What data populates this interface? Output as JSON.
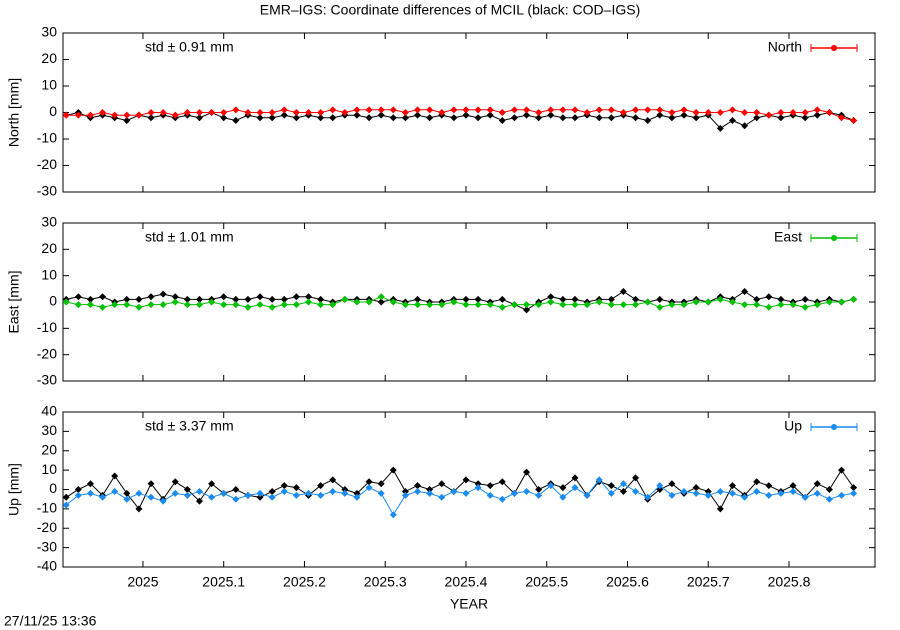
{
  "title": "EMR–IGS: Coordinate differences of MCIL (black: COD–IGS)",
  "timestamp": "27/11/25 13:36",
  "chart_data": [
    {
      "type": "line",
      "ylabel": "North [mm]",
      "annotation": "std ± 0.91 mm",
      "xlim": [
        2024.901,
        2025.9065
      ],
      "xticks": [
        2025,
        2025.1,
        2025.2,
        2025.3,
        2025.4,
        2025.5,
        2025.6,
        2025.7,
        2025.8
      ],
      "ylim": [
        -30,
        30
      ],
      "yticks": [
        -30,
        -20,
        -10,
        0,
        10,
        20,
        30
      ],
      "legend": "top-right",
      "x": [
        2024.905,
        2024.92,
        2024.935,
        2024.95,
        2024.965,
        2024.98,
        2024.995,
        2025.01,
        2025.025,
        2025.04,
        2025.055,
        2025.07,
        2025.085,
        2025.1,
        2025.115,
        2025.13,
        2025.145,
        2025.16,
        2025.175,
        2025.19,
        2025.205,
        2025.22,
        2025.235,
        2025.25,
        2025.265,
        2025.28,
        2025.295,
        2025.31,
        2025.325,
        2025.34,
        2025.355,
        2025.37,
        2025.385,
        2025.4,
        2025.415,
        2025.43,
        2025.445,
        2025.46,
        2025.475,
        2025.49,
        2025.505,
        2025.52,
        2025.535,
        2025.55,
        2025.565,
        2025.58,
        2025.595,
        2025.61,
        2025.625,
        2025.64,
        2025.655,
        2025.67,
        2025.685,
        2025.7,
        2025.715,
        2025.73,
        2025.745,
        2025.76,
        2025.775,
        2025.79,
        2025.805,
        2025.82,
        2025.835,
        2025.85,
        2025.865,
        2025.88
      ],
      "series": [
        {
          "color": "#000000",
          "values": [
            -1,
            0,
            -2,
            -1,
            -2,
            -3,
            -1,
            -2,
            -1,
            -2,
            -1,
            -2,
            0,
            -2,
            -3,
            -1,
            -2,
            -2,
            -1,
            -2,
            -1,
            -2,
            -2,
            -1,
            -1,
            -2,
            -1,
            -2,
            -2,
            -1,
            -2,
            -1,
            -2,
            -1,
            -2,
            -1,
            -3,
            -2,
            -1,
            -2,
            -1,
            -2,
            -2,
            -1,
            -2,
            -2,
            -1,
            -2,
            -3,
            -1,
            -2,
            -1,
            -2,
            -1,
            -6,
            -3,
            -5,
            -2,
            -1,
            -2,
            -1,
            -2,
            -1,
            0,
            -1,
            -3
          ]
        },
        {
          "name": "North",
          "color": "#ff0000",
          "values": [
            -1,
            -1,
            -1,
            0,
            -1,
            -1,
            -1,
            0,
            0,
            -1,
            0,
            0,
            0,
            0,
            1,
            0,
            0,
            0,
            1,
            0,
            0,
            0,
            1,
            0,
            1,
            1,
            1,
            1,
            0,
            1,
            1,
            0,
            1,
            1,
            1,
            1,
            0,
            1,
            1,
            0,
            1,
            1,
            1,
            0,
            1,
            1,
            0,
            1,
            1,
            1,
            0,
            1,
            0,
            0,
            0,
            1,
            0,
            0,
            -1,
            0,
            0,
            0,
            1,
            0,
            -2,
            -3
          ]
        }
      ]
    },
    {
      "type": "line",
      "ylabel": "East [mm]",
      "annotation": "std ± 1.01 mm",
      "xlim": [
        2024.901,
        2025.9065
      ],
      "xticks": [
        2025,
        2025.1,
        2025.2,
        2025.3,
        2025.4,
        2025.5,
        2025.6,
        2025.7,
        2025.8
      ],
      "ylim": [
        -30,
        30
      ],
      "yticks": [
        -30,
        -20,
        -10,
        0,
        10,
        20,
        30
      ],
      "legend": "top-right",
      "x": [
        2024.905,
        2024.92,
        2024.935,
        2024.95,
        2024.965,
        2024.98,
        2024.995,
        2025.01,
        2025.025,
        2025.04,
        2025.055,
        2025.07,
        2025.085,
        2025.1,
        2025.115,
        2025.13,
        2025.145,
        2025.16,
        2025.175,
        2025.19,
        2025.205,
        2025.22,
        2025.235,
        2025.25,
        2025.265,
        2025.28,
        2025.295,
        2025.31,
        2025.325,
        2025.34,
        2025.355,
        2025.37,
        2025.385,
        2025.4,
        2025.415,
        2025.43,
        2025.445,
        2025.46,
        2025.475,
        2025.49,
        2025.505,
        2025.52,
        2025.535,
        2025.55,
        2025.565,
        2025.58,
        2025.595,
        2025.61,
        2025.625,
        2025.64,
        2025.655,
        2025.67,
        2025.685,
        2025.7,
        2025.715,
        2025.73,
        2025.745,
        2025.76,
        2025.775,
        2025.79,
        2025.805,
        2025.82,
        2025.835,
        2025.85,
        2025.865,
        2025.88
      ],
      "series": [
        {
          "color": "#000000",
          "values": [
            1,
            2,
            1,
            2,
            0,
            1,
            1,
            2,
            3,
            2,
            1,
            1,
            1,
            2,
            1,
            1,
            2,
            1,
            1,
            2,
            2,
            1,
            0,
            1,
            1,
            1,
            0,
            1,
            0,
            1,
            0,
            0,
            1,
            1,
            1,
            0,
            1,
            -1,
            -3,
            0,
            2,
            1,
            1,
            0,
            1,
            1,
            4,
            1,
            0,
            1,
            0,
            0,
            1,
            0,
            2,
            1,
            4,
            1,
            2,
            1,
            0,
            1,
            0,
            1,
            0,
            1
          ]
        },
        {
          "name": "East",
          "color": "#00c000",
          "values": [
            0,
            -1,
            -1,
            -2,
            -1,
            -1,
            -2,
            -1,
            -1,
            0,
            -1,
            -1,
            0,
            -1,
            -1,
            -2,
            -1,
            -2,
            -1,
            -1,
            0,
            -1,
            -1,
            1,
            0,
            0,
            2,
            0,
            -1,
            -1,
            -1,
            -1,
            0,
            -1,
            -1,
            -1,
            -2,
            -1,
            -1,
            -1,
            0,
            -1,
            -1,
            -1,
            0,
            -1,
            -1,
            -1,
            0,
            -2,
            -1,
            -1,
            0,
            0,
            1,
            0,
            -1,
            -1,
            -2,
            -1,
            -1,
            -2,
            -1,
            0,
            0,
            1
          ]
        }
      ]
    },
    {
      "type": "line",
      "ylabel": "Up [mm]",
      "annotation": "std ± 3.37 mm",
      "xlabel": "YEAR",
      "xlim": [
        2024.901,
        2025.9065
      ],
      "xticks": [
        2025,
        2025.1,
        2025.2,
        2025.3,
        2025.4,
        2025.5,
        2025.6,
        2025.7,
        2025.8
      ],
      "ylim": [
        -40,
        40
      ],
      "yticks": [
        -40,
        -30,
        -20,
        -10,
        0,
        10,
        20,
        30,
        40
      ],
      "legend": "top-right",
      "x": [
        2024.905,
        2024.92,
        2024.935,
        2024.95,
        2024.965,
        2024.98,
        2024.995,
        2025.01,
        2025.025,
        2025.04,
        2025.055,
        2025.07,
        2025.085,
        2025.1,
        2025.115,
        2025.13,
        2025.145,
        2025.16,
        2025.175,
        2025.19,
        2025.205,
        2025.22,
        2025.235,
        2025.25,
        2025.265,
        2025.28,
        2025.295,
        2025.31,
        2025.325,
        2025.34,
        2025.355,
        2025.37,
        2025.385,
        2025.4,
        2025.415,
        2025.43,
        2025.445,
        2025.46,
        2025.475,
        2025.49,
        2025.505,
        2025.52,
        2025.535,
        2025.55,
        2025.565,
        2025.58,
        2025.595,
        2025.61,
        2025.625,
        2025.64,
        2025.655,
        2025.67,
        2025.685,
        2025.7,
        2025.715,
        2025.73,
        2025.745,
        2025.76,
        2025.775,
        2025.79,
        2025.805,
        2025.82,
        2025.835,
        2025.85,
        2025.865,
        2025.88
      ],
      "series": [
        {
          "color": "#000000",
          "values": [
            -4,
            0,
            3,
            -3,
            7,
            -2,
            -10,
            3,
            -5,
            4,
            0,
            -6,
            3,
            -2,
            0,
            -3,
            -4,
            -1,
            2,
            1,
            -3,
            2,
            5,
            0,
            -2,
            4,
            3,
            10,
            -1,
            2,
            0,
            3,
            -1,
            5,
            3,
            2,
            4,
            -2,
            9,
            0,
            3,
            1,
            6,
            -3,
            4,
            2,
            -1,
            6,
            -5,
            0,
            3,
            -2,
            1,
            -1,
            -10,
            2,
            -3,
            4,
            2,
            -1,
            2,
            -4,
            3,
            0,
            10,
            1
          ]
        },
        {
          "name": "Up",
          "color": "#1a8cf0",
          "values": [
            -8,
            -3,
            -2,
            -4,
            -1,
            -5,
            -2,
            -4,
            -6,
            -2,
            -3,
            -1,
            -4,
            -2,
            -5,
            -3,
            -2,
            -4,
            -1,
            -3,
            -2,
            -3,
            -1,
            -2,
            -4,
            1,
            -2,
            -13,
            -3,
            -1,
            -2,
            -4,
            -1,
            -2,
            1,
            -3,
            -5,
            -2,
            -1,
            -3,
            2,
            -4,
            1,
            -3,
            5,
            -2,
            3,
            -1,
            -4,
            2,
            -3,
            -1,
            -2,
            -3,
            -1,
            -2,
            -4,
            -1,
            -3,
            -2,
            -1,
            -4,
            -2,
            -5,
            -3,
            -2
          ]
        }
      ]
    }
  ]
}
